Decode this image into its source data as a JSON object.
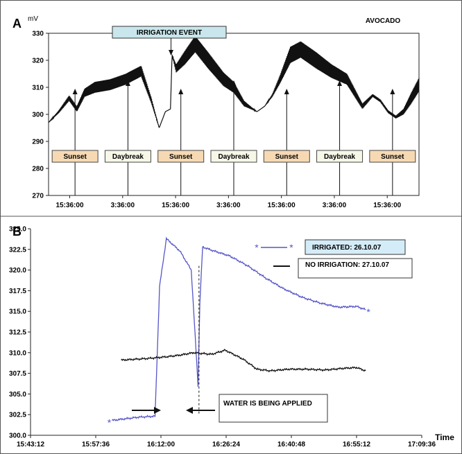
{
  "chart_data": [
    {
      "panel_label": "A",
      "type": "line",
      "title": "AVOCADO",
      "ylabel": "mV",
      "ylim": [
        270,
        330
      ],
      "y_ticks": [
        270,
        280,
        290,
        300,
        310,
        320,
        330
      ],
      "x_tick_labels": [
        "15:36:00",
        "3:36:00",
        "15:36:00",
        "3:36:00",
        "15:36:00",
        "3:36:00",
        "15:36:00"
      ],
      "x_range_hours": [
        0,
        72
      ],
      "grid": false,
      "series": [
        {
          "x_hours": [
            0,
            2,
            4,
            5.5,
            7,
            9,
            12,
            15,
            18,
            20,
            21.5,
            22.7,
            23.7,
            24,
            24.8,
            26.5,
            28.5,
            31,
            34,
            36,
            38,
            40.5,
            42,
            43.5,
            45,
            47,
            49,
            52,
            55,
            58,
            61,
            63,
            64.5,
            66,
            67.5,
            69,
            70.5,
            72
          ],
          "values": [
            297,
            301,
            306,
            302,
            308,
            310,
            311,
            313,
            316,
            305,
            295,
            301,
            302,
            322,
            317,
            321,
            326,
            320,
            313,
            310,
            304,
            301,
            303,
            307,
            313,
            322,
            324,
            320,
            316,
            313,
            303,
            307,
            305,
            301,
            299,
            301,
            306,
            311
          ],
          "oscillation_mV": [
            0,
            1,
            2,
            2,
            3,
            4,
            4,
            4,
            4,
            2,
            0,
            0,
            0,
            0,
            3,
            5,
            6,
            6,
            5,
            4,
            2,
            0,
            0,
            1,
            3,
            6,
            6,
            6,
            5,
            4,
            2,
            1,
            1,
            1,
            1,
            2,
            4,
            5
          ]
        }
      ],
      "event_label": "IRRIGATION EVENT",
      "event_at_hour": 23.8,
      "markers": [
        {
          "label": "Sunset",
          "hour": 2.5,
          "kind": "sunset"
        },
        {
          "label": "Daybreak",
          "hour": 15.5,
          "kind": "daybreak"
        },
        {
          "label": "Sunset",
          "hour": 27,
          "kind": "sunset"
        },
        {
          "label": "Daybreak",
          "hour": 40,
          "kind": "daybreak"
        },
        {
          "label": "Sunset",
          "hour": 51.5,
          "kind": "sunset"
        },
        {
          "label": "Daybreak",
          "hour": 64,
          "kind": "daybreak"
        },
        {
          "label": "Sunset",
          "hour": 75.5,
          "kind": "sunset"
        }
      ],
      "colors": {
        "line": "#111111",
        "event_box": "#c8e6ec",
        "sunset_box": "#f6d9b3",
        "daybreak_box": "#f6f7e7"
      }
    },
    {
      "panel_label": "B",
      "type": "line",
      "xlabel": "Time",
      "ylim": [
        300.0,
        325.0
      ],
      "y_tick_labels": [
        "300.0",
        "302.5",
        "305.0",
        "307.5",
        "310.0",
        "312.5",
        "315.0",
        "317.5",
        "320.0",
        "322.5",
        "325.0"
      ],
      "x_tick_labels": [
        "15:43:12",
        "15:57:36",
        "16:12:00",
        "16:26:24",
        "16:40:48",
        "16:55:12",
        "17:09:36"
      ],
      "x_range_min": [
        0,
        86.4
      ],
      "grid": false,
      "series": [
        {
          "name": "IRRIGATED: 26.10.07",
          "color": "#5555c8",
          "x_min": [
            18,
            21,
            24,
            27.5,
            28.5,
            30,
            31.2,
            33,
            35.5,
            37,
            37.4,
            38,
            40,
            44,
            48,
            52,
            56,
            60,
            64,
            68,
            72,
            74
          ],
          "values": [
            301.8,
            302.0,
            302.2,
            302.3,
            318.0,
            323.8,
            323.2,
            322.3,
            320.0,
            306.0,
            316.0,
            322.8,
            322.4,
            321.7,
            320.5,
            319.0,
            317.7,
            316.7,
            316.0,
            315.5,
            315.6,
            315.2
          ]
        },
        {
          "name": "NO IRRIGATION: 27.10.07",
          "color": "#111111",
          "x_min": [
            20,
            26,
            30,
            33,
            36,
            40,
            43,
            47,
            50,
            53,
            57,
            61,
            65,
            69,
            72,
            74
          ],
          "values": [
            309.1,
            309.3,
            309.5,
            309.7,
            310.0,
            309.8,
            310.3,
            309.2,
            308.0,
            307.8,
            308.0,
            308.0,
            307.9,
            308.1,
            308.2,
            307.8
          ]
        }
      ],
      "annotation": "WATER IS BEING APPLIED",
      "applied_at_min": 37.2,
      "colors": {
        "irrigated_legend_box": "#d4ecf7"
      }
    }
  ]
}
